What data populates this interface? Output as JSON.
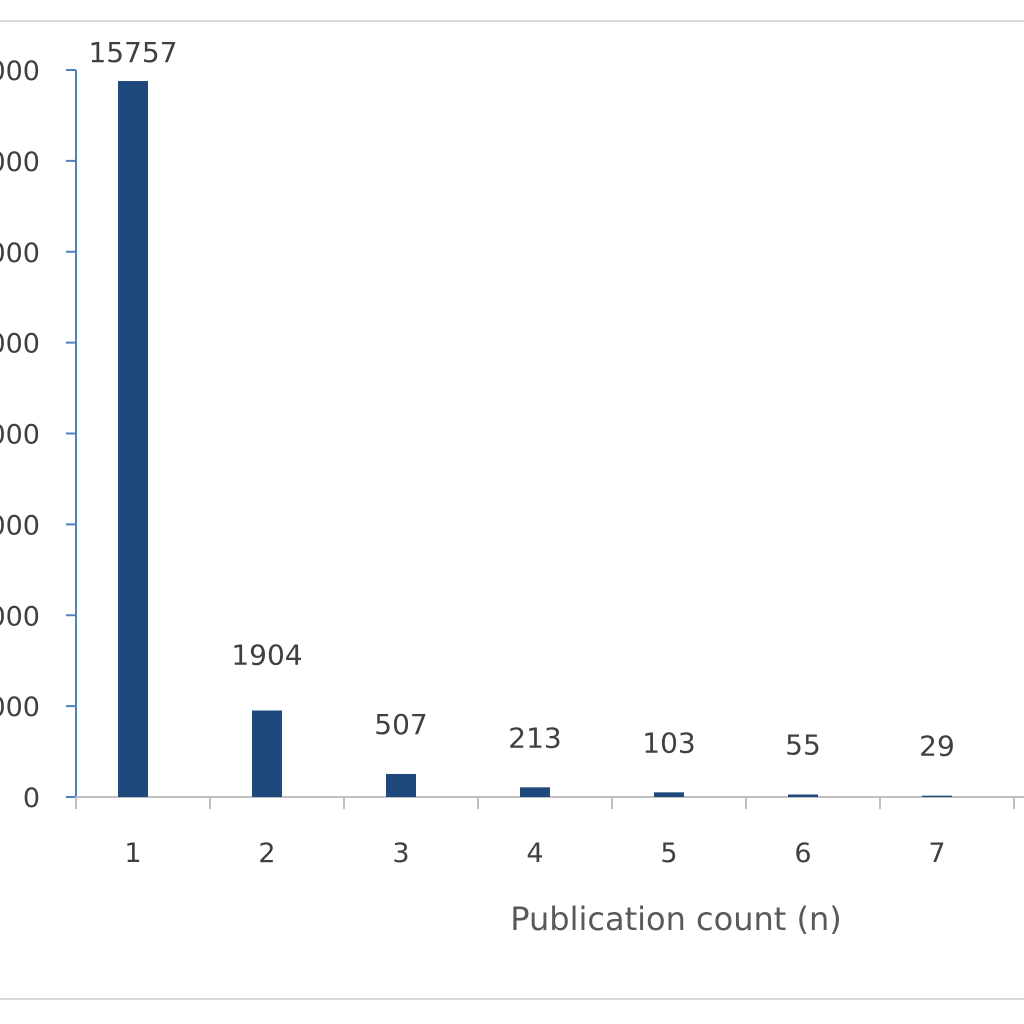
{
  "chart_data": {
    "type": "bar",
    "title": "",
    "xlabel": "Publication count (n)",
    "ylabel": "",
    "categories": [
      "1",
      "2",
      "3",
      "4",
      "5",
      "6",
      "7"
    ],
    "values": [
      15757,
      1904,
      507,
      213,
      103,
      55,
      29
    ],
    "data_labels": [
      "15757",
      "1904",
      "507",
      "213",
      "103",
      "55",
      "29"
    ],
    "y_tick_labels": [
      "0",
      "000",
      "000",
      "000",
      "000",
      "000",
      "000",
      "000",
      "000"
    ],
    "y_tick_values": [
      0,
      2000,
      4000,
      6000,
      8000,
      10000,
      12000,
      14000,
      16000
    ],
    "ylim": [
      0,
      16000
    ],
    "grid": false,
    "legend": "none",
    "colors": {
      "bar": "#1f497d",
      "axis": "#4f81bd",
      "baseline": "#bfbfbf",
      "frame": "#d9d9d9",
      "text": "#404040"
    }
  }
}
